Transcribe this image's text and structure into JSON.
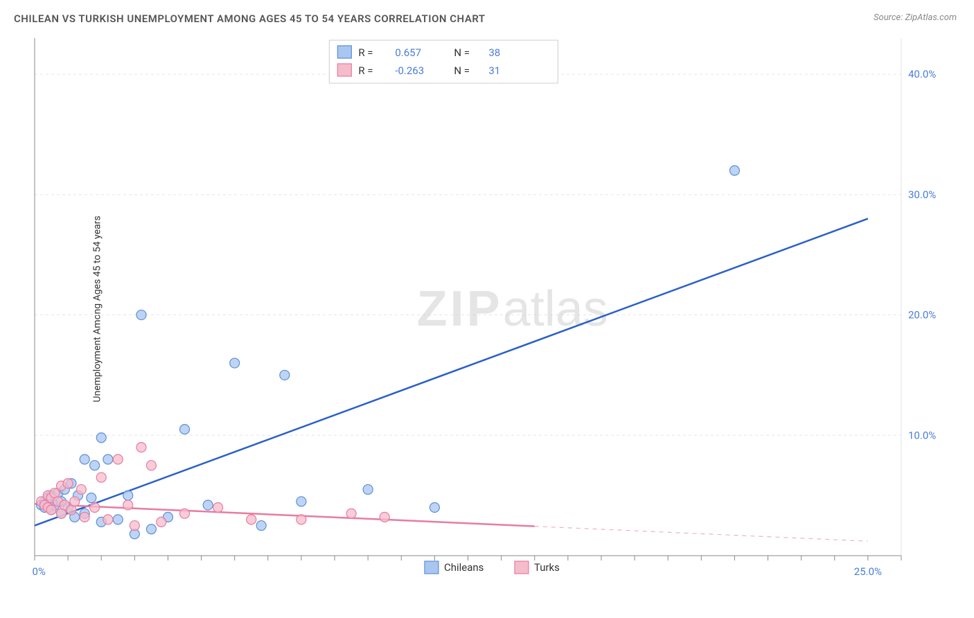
{
  "title": "CHILEAN VS TURKISH UNEMPLOYMENT AMONG AGES 45 TO 54 YEARS CORRELATION CHART",
  "source_label": "Source:",
  "source_value": "ZipAtlas.com",
  "ylabel": "Unemployment Among Ages 45 to 54 years",
  "watermark_a": "ZIP",
  "watermark_b": "atlas",
  "chart": {
    "type": "scatter-with-regression",
    "xlim": [
      0,
      26
    ],
    "ylim": [
      0,
      43
    ],
    "x_tick_label_left": "0.0%",
    "x_tick_label_right": "25.0%",
    "y_ticks": [
      {
        "v": 10,
        "label": "10.0%"
      },
      {
        "v": 20,
        "label": "20.0%"
      },
      {
        "v": 30,
        "label": "30.0%"
      },
      {
        "v": 40,
        "label": "40.0%"
      }
    ],
    "x_minor_step": 1,
    "grid_color": "#e5e5e5",
    "axis_color": "#888888",
    "tick_label_color": "#4a7dd8",
    "series": [
      {
        "name": "Chileans",
        "marker_fill": "#a8c6f0",
        "marker_stroke": "#5b8fd6",
        "marker_radius": 7,
        "line_color": "#2a5fc9",
        "line_width": 2.5,
        "R_label": "R =",
        "R": "0.657",
        "N_label": "N =",
        "N": "38",
        "regression": {
          "x1": 0,
          "y1": 2.5,
          "x2": 25,
          "y2": 28.0,
          "data_xmax": 25
        },
        "points": [
          [
            0.2,
            4.2
          ],
          [
            0.3,
            4.5
          ],
          [
            0.3,
            4.0
          ],
          [
            0.4,
            4.8
          ],
          [
            0.4,
            4.3
          ],
          [
            0.5,
            5.0
          ],
          [
            0.5,
            3.8
          ],
          [
            0.6,
            4.2
          ],
          [
            0.7,
            5.2
          ],
          [
            0.8,
            4.5
          ],
          [
            0.8,
            3.5
          ],
          [
            0.9,
            5.5
          ],
          [
            1.0,
            4.0
          ],
          [
            1.1,
            6.0
          ],
          [
            1.2,
            3.2
          ],
          [
            1.3,
            5.0
          ],
          [
            1.5,
            8.0
          ],
          [
            1.5,
            3.5
          ],
          [
            1.7,
            4.8
          ],
          [
            1.8,
            7.5
          ],
          [
            2.0,
            9.8
          ],
          [
            2.0,
            2.8
          ],
          [
            2.2,
            8.0
          ],
          [
            2.5,
            3.0
          ],
          [
            2.8,
            5.0
          ],
          [
            3.0,
            1.8
          ],
          [
            3.2,
            20.0
          ],
          [
            3.5,
            2.2
          ],
          [
            4.0,
            3.2
          ],
          [
            4.5,
            10.5
          ],
          [
            5.2,
            4.2
          ],
          [
            6.0,
            16.0
          ],
          [
            6.8,
            2.5
          ],
          [
            7.5,
            15.0
          ],
          [
            8.0,
            4.5
          ],
          [
            10.0,
            5.5
          ],
          [
            12.0,
            4.0
          ],
          [
            21.0,
            32.0
          ]
        ]
      },
      {
        "name": "Turks",
        "marker_fill": "#f5bccb",
        "marker_stroke": "#e87ba0",
        "marker_radius": 7,
        "line_color": "#e87ba0",
        "line_width": 2.5,
        "R_label": "R =",
        "R": "-0.263",
        "N_label": "N =",
        "N": "31",
        "regression": {
          "x1": 0,
          "y1": 4.3,
          "x2": 25,
          "y2": 1.2,
          "data_xmax": 15
        },
        "points": [
          [
            0.2,
            4.5
          ],
          [
            0.3,
            4.2
          ],
          [
            0.4,
            5.0
          ],
          [
            0.4,
            4.0
          ],
          [
            0.5,
            4.8
          ],
          [
            0.5,
            3.8
          ],
          [
            0.6,
            5.2
          ],
          [
            0.7,
            4.5
          ],
          [
            0.8,
            5.8
          ],
          [
            0.8,
            3.5
          ],
          [
            0.9,
            4.2
          ],
          [
            1.0,
            6.0
          ],
          [
            1.1,
            3.8
          ],
          [
            1.2,
            4.5
          ],
          [
            1.4,
            5.5
          ],
          [
            1.5,
            3.2
          ],
          [
            1.8,
            4.0
          ],
          [
            2.0,
            6.5
          ],
          [
            2.2,
            3.0
          ],
          [
            2.5,
            8.0
          ],
          [
            2.8,
            4.2
          ],
          [
            3.0,
            2.5
          ],
          [
            3.2,
            9.0
          ],
          [
            3.5,
            7.5
          ],
          [
            3.8,
            2.8
          ],
          [
            4.5,
            3.5
          ],
          [
            5.5,
            4.0
          ],
          [
            6.5,
            3.0
          ],
          [
            8.0,
            3.0
          ],
          [
            9.5,
            3.5
          ],
          [
            10.5,
            3.2
          ]
        ]
      }
    ]
  },
  "top_legend": {
    "box_border": "#cccccc",
    "r_label": "R =",
    "n_label": "N ="
  },
  "bottom_legend": {
    "items": [
      "Chileans",
      "Turks"
    ]
  }
}
